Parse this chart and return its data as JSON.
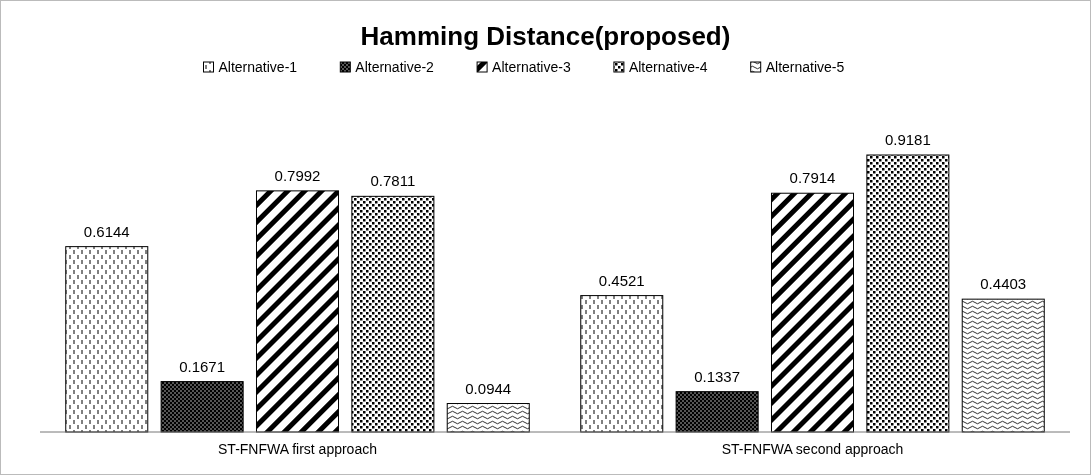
{
  "chart_data": {
    "type": "bar",
    "title": "Hamming Distance(proposed)",
    "categories": [
      "ST-FNFWA first approach",
      "ST-FNFWA second approach"
    ],
    "series": [
      {
        "name": "Alternative-1",
        "color": "#000000",
        "values": [
          0.6144,
          0.4521
        ]
      },
      {
        "name": "Alternative-2",
        "color": "#000000",
        "values": [
          0.1671,
          0.1337
        ]
      },
      {
        "name": "Alternative-3",
        "color": "#000000",
        "values": [
          0.7992,
          0.7914
        ]
      },
      {
        "name": "Alternative-4",
        "color": "#000000",
        "values": [
          0.7811,
          0.9181
        ]
      },
      {
        "name": "Alternative-5",
        "color": "#000000",
        "values": [
          0.0944,
          0.4403
        ]
      }
    ],
    "data_labels": true,
    "legend": "top"
  }
}
